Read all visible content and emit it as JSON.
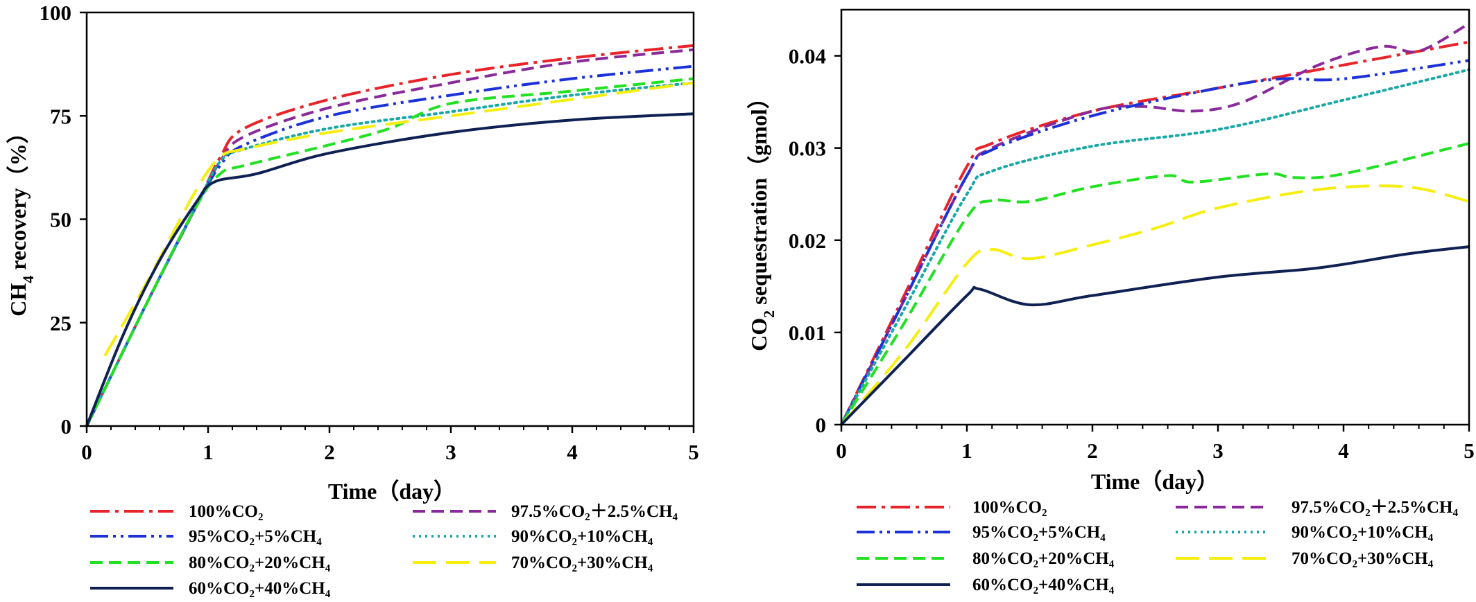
{
  "colors": {
    "s100": "#e8242a",
    "s975": "#8a2a9a",
    "s95": "#1c32d8",
    "s90": "#1aa7a7",
    "s80": "#22e022",
    "s70": "#f5ee10",
    "s60": "#0f2153"
  },
  "chart_data": [
    {
      "type": "line",
      "xlabel": "Time（day）",
      "ylabel_main": "CH",
      "ylabel_sub": "4",
      "ylabel_rest": " recovery（%）",
      "xlim": [
        0,
        5
      ],
      "ylim": [
        0,
        100
      ],
      "xticks": [
        "0",
        "1",
        "2",
        "3",
        "4",
        "5"
      ],
      "yticks": [
        "0",
        "25",
        "50",
        "75",
        "100"
      ],
      "grid": false,
      "legend_position": "bottom",
      "series": [
        {
          "name": "100%CO₂",
          "color_key": "s100",
          "dash": "dashdot",
          "x": [
            0,
            0.5,
            0.9,
            1.1,
            1.3,
            2,
            3,
            4,
            5
          ],
          "y": [
            0,
            30,
            53,
            65,
            72,
            79,
            85,
            89,
            92
          ]
        },
        {
          "name": "97.5%CO₂＋2.5%CH₄",
          "color_key": "s975",
          "dash": "dashed",
          "x": [
            0,
            0.5,
            0.9,
            1.1,
            1.3,
            2,
            3,
            4,
            5
          ],
          "y": [
            0,
            30,
            53,
            64,
            70,
            77,
            83,
            88,
            91
          ]
        },
        {
          "name": "95%CO₂+5%CH₄",
          "color_key": "s95",
          "dash": "dashdotdot",
          "x": [
            0,
            0.5,
            0.9,
            1.1,
            1.3,
            2,
            3,
            4,
            5
          ],
          "y": [
            0,
            30,
            53,
            63,
            68,
            75,
            80,
            84,
            87
          ]
        },
        {
          "name": "90%CO₂+10%CH₄",
          "color_key": "s90",
          "dash": "dotted",
          "x": [
            0,
            0.5,
            0.9,
            1.1,
            1.3,
            2,
            3,
            4,
            5
          ],
          "y": [
            0,
            30,
            53,
            64,
            67,
            72,
            76,
            80,
            83
          ]
        },
        {
          "name": "80%CO₂+20%CH₄",
          "color_key": "s80",
          "dash": "dashed",
          "x": [
            0,
            0.5,
            0.9,
            1.1,
            1.3,
            2,
            2.5,
            3,
            4,
            5
          ],
          "y": [
            0,
            30,
            53,
            61,
            63,
            68,
            72,
            78,
            81,
            84
          ]
        },
        {
          "name": "70%CO₂+30%CH₄",
          "color_key": "s70",
          "dash": "longdash",
          "x": [
            0.15,
            0.5,
            0.9,
            1.1,
            1.3,
            2,
            3,
            4,
            5
          ],
          "y": [
            17,
            35,
            57,
            65,
            67,
            71,
            75,
            79,
            83
          ]
        },
        {
          "name": "60%CO₂+40%CH₄",
          "color_key": "s60",
          "dash": "solid",
          "x": [
            0,
            0.3,
            0.6,
            0.9,
            1.05,
            1.4,
            2,
            3,
            4,
            5
          ],
          "y": [
            0,
            22,
            40,
            54,
            59,
            61,
            66,
            71,
            74,
            75.5
          ]
        }
      ]
    },
    {
      "type": "line",
      "xlabel": "Time（day）",
      "ylabel_main": "CO",
      "ylabel_sub": "2",
      "ylabel_rest": " sequestration（gmol）",
      "xlim": [
        0,
        5
      ],
      "ylim": [
        0,
        0.045
      ],
      "xticks": [
        "0",
        "1",
        "2",
        "3",
        "4",
        "5"
      ],
      "yticks": [
        "0",
        "0.01",
        "0.02",
        "0.03",
        "0.04"
      ],
      "ytick_values": [
        0,
        0.01,
        0.02,
        0.03,
        0.04
      ],
      "grid": false,
      "legend_position": "bottom",
      "series": [
        {
          "name": "100%CO₂",
          "color_key": "s100",
          "dash": "dashdot",
          "x": [
            0,
            0.5,
            1.0,
            1.2,
            2,
            3,
            4,
            5
          ],
          "y": [
            0,
            0.014,
            0.028,
            0.0305,
            0.034,
            0.0365,
            0.039,
            0.0415
          ]
        },
        {
          "name": "97.5%CO₂＋2.5%CH₄",
          "color_key": "s975",
          "dash": "dashed",
          "x": [
            0,
            0.5,
            1.0,
            1.2,
            2,
            2.4,
            2.8,
            3.2,
            3.8,
            4.3,
            4.6,
            5
          ],
          "y": [
            0,
            0.0135,
            0.027,
            0.03,
            0.034,
            0.0345,
            0.034,
            0.035,
            0.039,
            0.041,
            0.0405,
            0.0435
          ]
        },
        {
          "name": "95%CO₂+5%CH₄",
          "color_key": "s95",
          "dash": "dashdotdot",
          "x": [
            0,
            0.5,
            1.0,
            1.2,
            2,
            3,
            3.5,
            4,
            5
          ],
          "y": [
            0,
            0.0135,
            0.027,
            0.0298,
            0.0335,
            0.0365,
            0.0375,
            0.0375,
            0.0395
          ]
        },
        {
          "name": "90%CO₂+10%CH₄",
          "color_key": "s90",
          "dash": "dotted",
          "x": [
            0,
            0.5,
            1.0,
            1.2,
            2,
            3,
            4,
            5
          ],
          "y": [
            0,
            0.0125,
            0.025,
            0.0275,
            0.0302,
            0.032,
            0.0352,
            0.0385
          ]
        },
        {
          "name": "80%CO₂+20%CH₄",
          "color_key": "s80",
          "dash": "dashed",
          "x": [
            0,
            0.5,
            1.0,
            1.2,
            1.5,
            2,
            2.6,
            2.8,
            3.4,
            3.6,
            4,
            5
          ],
          "y": [
            0,
            0.011,
            0.0225,
            0.0243,
            0.0242,
            0.0258,
            0.027,
            0.0263,
            0.0272,
            0.0268,
            0.0272,
            0.0305
          ]
        },
        {
          "name": "70%CO₂+30%CH₄",
          "color_key": "s70",
          "dash": "longdash",
          "x": [
            0,
            0.5,
            1.0,
            1.2,
            1.5,
            2,
            2.5,
            3,
            3.8,
            4.5,
            5
          ],
          "y": [
            0,
            0.008,
            0.0175,
            0.019,
            0.018,
            0.0195,
            0.0213,
            0.0235,
            0.0255,
            0.0258,
            0.0242
          ]
        },
        {
          "name": "60%CO₂+40%CH₄",
          "color_key": "s60",
          "dash": "solid",
          "x": [
            0,
            0.5,
            1.0,
            1.1,
            1.5,
            2,
            3,
            3.8,
            4.5,
            5
          ],
          "y": [
            0,
            0.007,
            0.014,
            0.0147,
            0.013,
            0.014,
            0.016,
            0.017,
            0.0185,
            0.0193
          ]
        }
      ]
    }
  ]
}
